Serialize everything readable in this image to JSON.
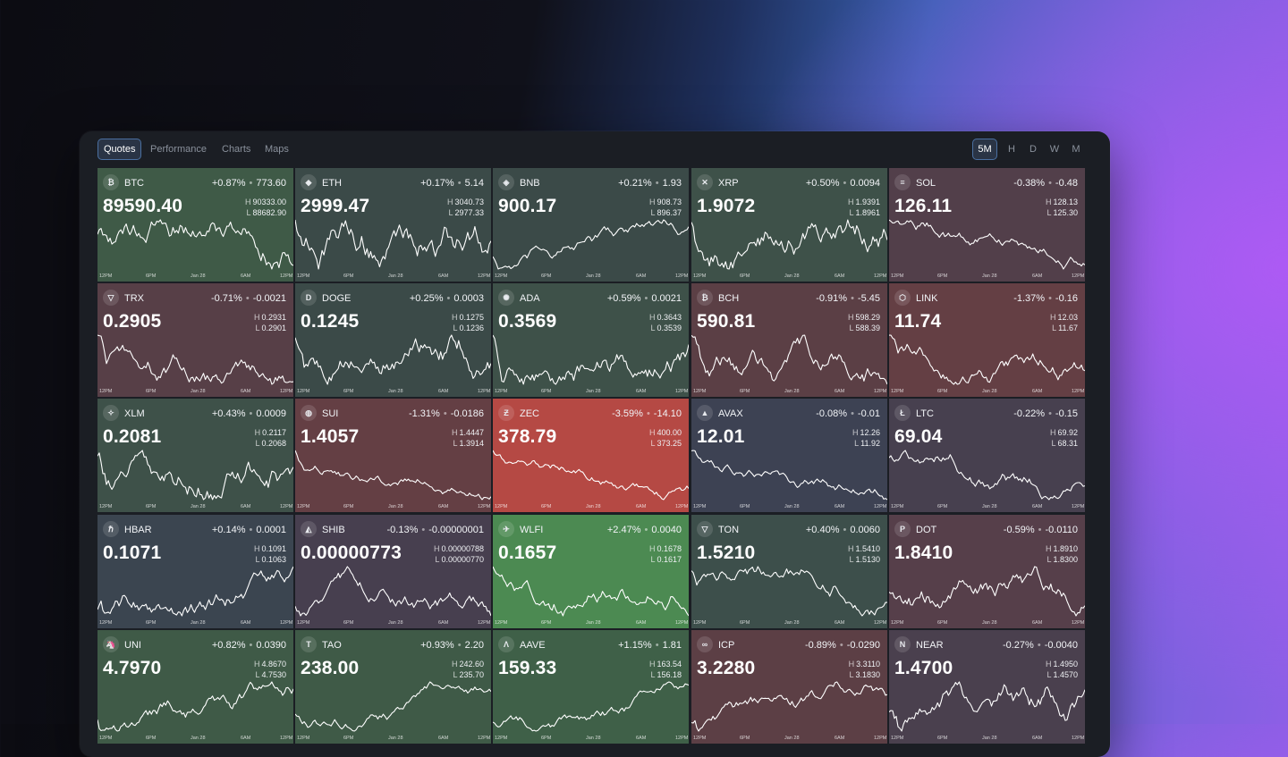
{
  "tabs": [
    {
      "label": "Quotes",
      "active": true
    },
    {
      "label": "Performance",
      "active": false
    },
    {
      "label": "Charts",
      "active": false
    },
    {
      "label": "Maps",
      "active": false
    }
  ],
  "timeframes": [
    {
      "label": "5M",
      "active": true
    },
    {
      "label": "H",
      "active": false
    },
    {
      "label": "D",
      "active": false
    },
    {
      "label": "W",
      "active": false
    },
    {
      "label": "M",
      "active": false
    }
  ],
  "axis_labels": [
    "12PM",
    "6PM",
    "Jan 28",
    "6AM",
    "12PM"
  ],
  "colors": {
    "up": "#3f5c49",
    "down": "#5c3f46",
    "neutral": "#3b4553",
    "strong_up": "#4f8a52",
    "strong_down": "#b84a46"
  },
  "tiles": [
    {
      "symbol": "BTC",
      "icon": "bitcoin-icon",
      "glyph": "₿",
      "change_pct": "+0.87%",
      "change_abs": "773.60",
      "price": "89590.40",
      "high": "90333.00",
      "low": "88682.90",
      "trend": "up",
      "color": "#3f5a47"
    },
    {
      "symbol": "ETH",
      "icon": "ethereum-icon",
      "glyph": "◆",
      "change_pct": "+0.17%",
      "change_abs": "5.14",
      "price": "2999.47",
      "high": "3040.73",
      "low": "2977.33",
      "trend": "up",
      "color": "#3b4a48"
    },
    {
      "symbol": "BNB",
      "icon": "bnb-icon",
      "glyph": "◈",
      "change_pct": "+0.21%",
      "change_abs": "1.93",
      "price": "900.17",
      "high": "908.73",
      "low": "896.37",
      "trend": "up",
      "color": "#3b4a48"
    },
    {
      "symbol": "XRP",
      "icon": "xrp-icon",
      "glyph": "✕",
      "change_pct": "+0.50%",
      "change_abs": "0.0094",
      "price": "1.9072",
      "high": "1.9391",
      "low": "1.8961",
      "trend": "up",
      "color": "#3e5149"
    },
    {
      "symbol": "SOL",
      "icon": "solana-icon",
      "glyph": "≡",
      "change_pct": "-0.38%",
      "change_abs": "-0.48",
      "price": "126.11",
      "high": "128.13",
      "low": "125.30",
      "trend": "down",
      "color": "#523f4a"
    },
    {
      "symbol": "TRX",
      "icon": "tron-icon",
      "glyph": "▽",
      "change_pct": "-0.71%",
      "change_abs": "-0.0021",
      "price": "0.2905",
      "high": "0.2931",
      "low": "0.2901",
      "trend": "down",
      "color": "#573f47"
    },
    {
      "symbol": "DOGE",
      "icon": "dogecoin-icon",
      "glyph": "D",
      "change_pct": "+0.25%",
      "change_abs": "0.0003",
      "price": "0.1245",
      "high": "0.1275",
      "low": "0.1236",
      "trend": "up",
      "color": "#3b4a48"
    },
    {
      "symbol": "ADA",
      "icon": "cardano-icon",
      "glyph": "✺",
      "change_pct": "+0.59%",
      "change_abs": "0.0021",
      "price": "0.3569",
      "high": "0.3643",
      "low": "0.3539",
      "trend": "up",
      "color": "#3e5149"
    },
    {
      "symbol": "BCH",
      "icon": "bitcoin-cash-icon",
      "glyph": "₿",
      "change_pct": "-0.91%",
      "change_abs": "-5.45",
      "price": "590.81",
      "high": "598.29",
      "low": "588.39",
      "trend": "down",
      "color": "#5b3f45"
    },
    {
      "symbol": "LINK",
      "icon": "chainlink-icon",
      "glyph": "⬡",
      "change_pct": "-1.37%",
      "change_abs": "-0.16",
      "price": "11.74",
      "high": "12.03",
      "low": "11.67",
      "trend": "down",
      "color": "#643f44"
    },
    {
      "symbol": "XLM",
      "icon": "stellar-icon",
      "glyph": "✧",
      "change_pct": "+0.43%",
      "change_abs": "0.0009",
      "price": "0.2081",
      "high": "0.2117",
      "low": "0.2068",
      "trend": "up",
      "color": "#3e5149"
    },
    {
      "symbol": "SUI",
      "icon": "sui-icon",
      "glyph": "◍",
      "change_pct": "-1.31%",
      "change_abs": "-0.0186",
      "price": "1.4057",
      "high": "1.4447",
      "low": "1.3914",
      "trend": "down",
      "color": "#643f44"
    },
    {
      "symbol": "ZEC",
      "icon": "zcash-icon",
      "glyph": "Ƶ",
      "change_pct": "-3.59%",
      "change_abs": "-14.10",
      "price": "378.79",
      "high": "400.00",
      "low": "373.25",
      "trend": "down",
      "color": "#b54944"
    },
    {
      "symbol": "AVAX",
      "icon": "avalanche-icon",
      "glyph": "▲",
      "change_pct": "-0.08%",
      "change_abs": "-0.01",
      "price": "12.01",
      "high": "12.26",
      "low": "11.92",
      "trend": "down",
      "color": "#3d4253"
    },
    {
      "symbol": "LTC",
      "icon": "litecoin-icon",
      "glyph": "Ł",
      "change_pct": "-0.22%",
      "change_abs": "-0.15",
      "price": "69.04",
      "high": "69.92",
      "low": "68.31",
      "trend": "down",
      "color": "#47404f"
    },
    {
      "symbol": "HBAR",
      "icon": "hedera-icon",
      "glyph": "ℏ",
      "change_pct": "+0.14%",
      "change_abs": "0.0001",
      "price": "0.1071",
      "high": "0.1091",
      "low": "0.1063",
      "trend": "up",
      "color": "#3b4550"
    },
    {
      "symbol": "SHIB",
      "icon": "shiba-icon",
      "glyph": "◭",
      "change_pct": "-0.13%",
      "change_abs": "-0.00000001",
      "price": "0.00000773",
      "high": "0.00000788",
      "low": "0.00000770",
      "trend": "down",
      "color": "#473f4f"
    },
    {
      "symbol": "WLFI",
      "icon": "wlfi-icon",
      "glyph": "✈",
      "change_pct": "+2.47%",
      "change_abs": "0.0040",
      "price": "0.1657",
      "high": "0.1678",
      "low": "0.1617",
      "trend": "up",
      "color": "#4c8a52"
    },
    {
      "symbol": "TON",
      "icon": "toncoin-icon",
      "glyph": "▽",
      "change_pct": "+0.40%",
      "change_abs": "0.0060",
      "price": "1.5210",
      "high": "1.5410",
      "low": "1.5130",
      "trend": "up",
      "color": "#3d4f4b"
    },
    {
      "symbol": "DOT",
      "icon": "polkadot-icon",
      "glyph": "P",
      "change_pct": "-0.59%",
      "change_abs": "-0.0110",
      "price": "1.8410",
      "high": "1.8910",
      "low": "1.8300",
      "trend": "down",
      "color": "#563f4a"
    },
    {
      "symbol": "UNI",
      "icon": "uniswap-icon",
      "glyph": "🦄",
      "change_pct": "+0.82%",
      "change_abs": "0.0390",
      "price": "4.7970",
      "high": "4.8670",
      "low": "4.7530",
      "trend": "up",
      "color": "#3f5a47"
    },
    {
      "symbol": "TAO",
      "icon": "bittensor-icon",
      "glyph": "T",
      "change_pct": "+0.93%",
      "change_abs": "2.20",
      "price": "238.00",
      "high": "242.60",
      "low": "235.70",
      "trend": "up",
      "color": "#3f5a47"
    },
    {
      "symbol": "AAVE",
      "icon": "aave-icon",
      "glyph": "Λ",
      "change_pct": "+1.15%",
      "change_abs": "1.81",
      "price": "159.33",
      "high": "163.54",
      "low": "156.18",
      "trend": "up",
      "color": "#3f6048"
    },
    {
      "symbol": "ICP",
      "icon": "icp-icon",
      "glyph": "∞",
      "change_pct": "-0.89%",
      "change_abs": "-0.0290",
      "price": "3.2280",
      "high": "3.3110",
      "low": "3.1830",
      "trend": "down",
      "color": "#5c3f45"
    },
    {
      "symbol": "NEAR",
      "icon": "near-icon",
      "glyph": "N",
      "change_pct": "-0.27%",
      "change_abs": "-0.0040",
      "price": "1.4700",
      "high": "1.4950",
      "low": "1.4570",
      "trend": "down",
      "color": "#4a404e"
    }
  ]
}
